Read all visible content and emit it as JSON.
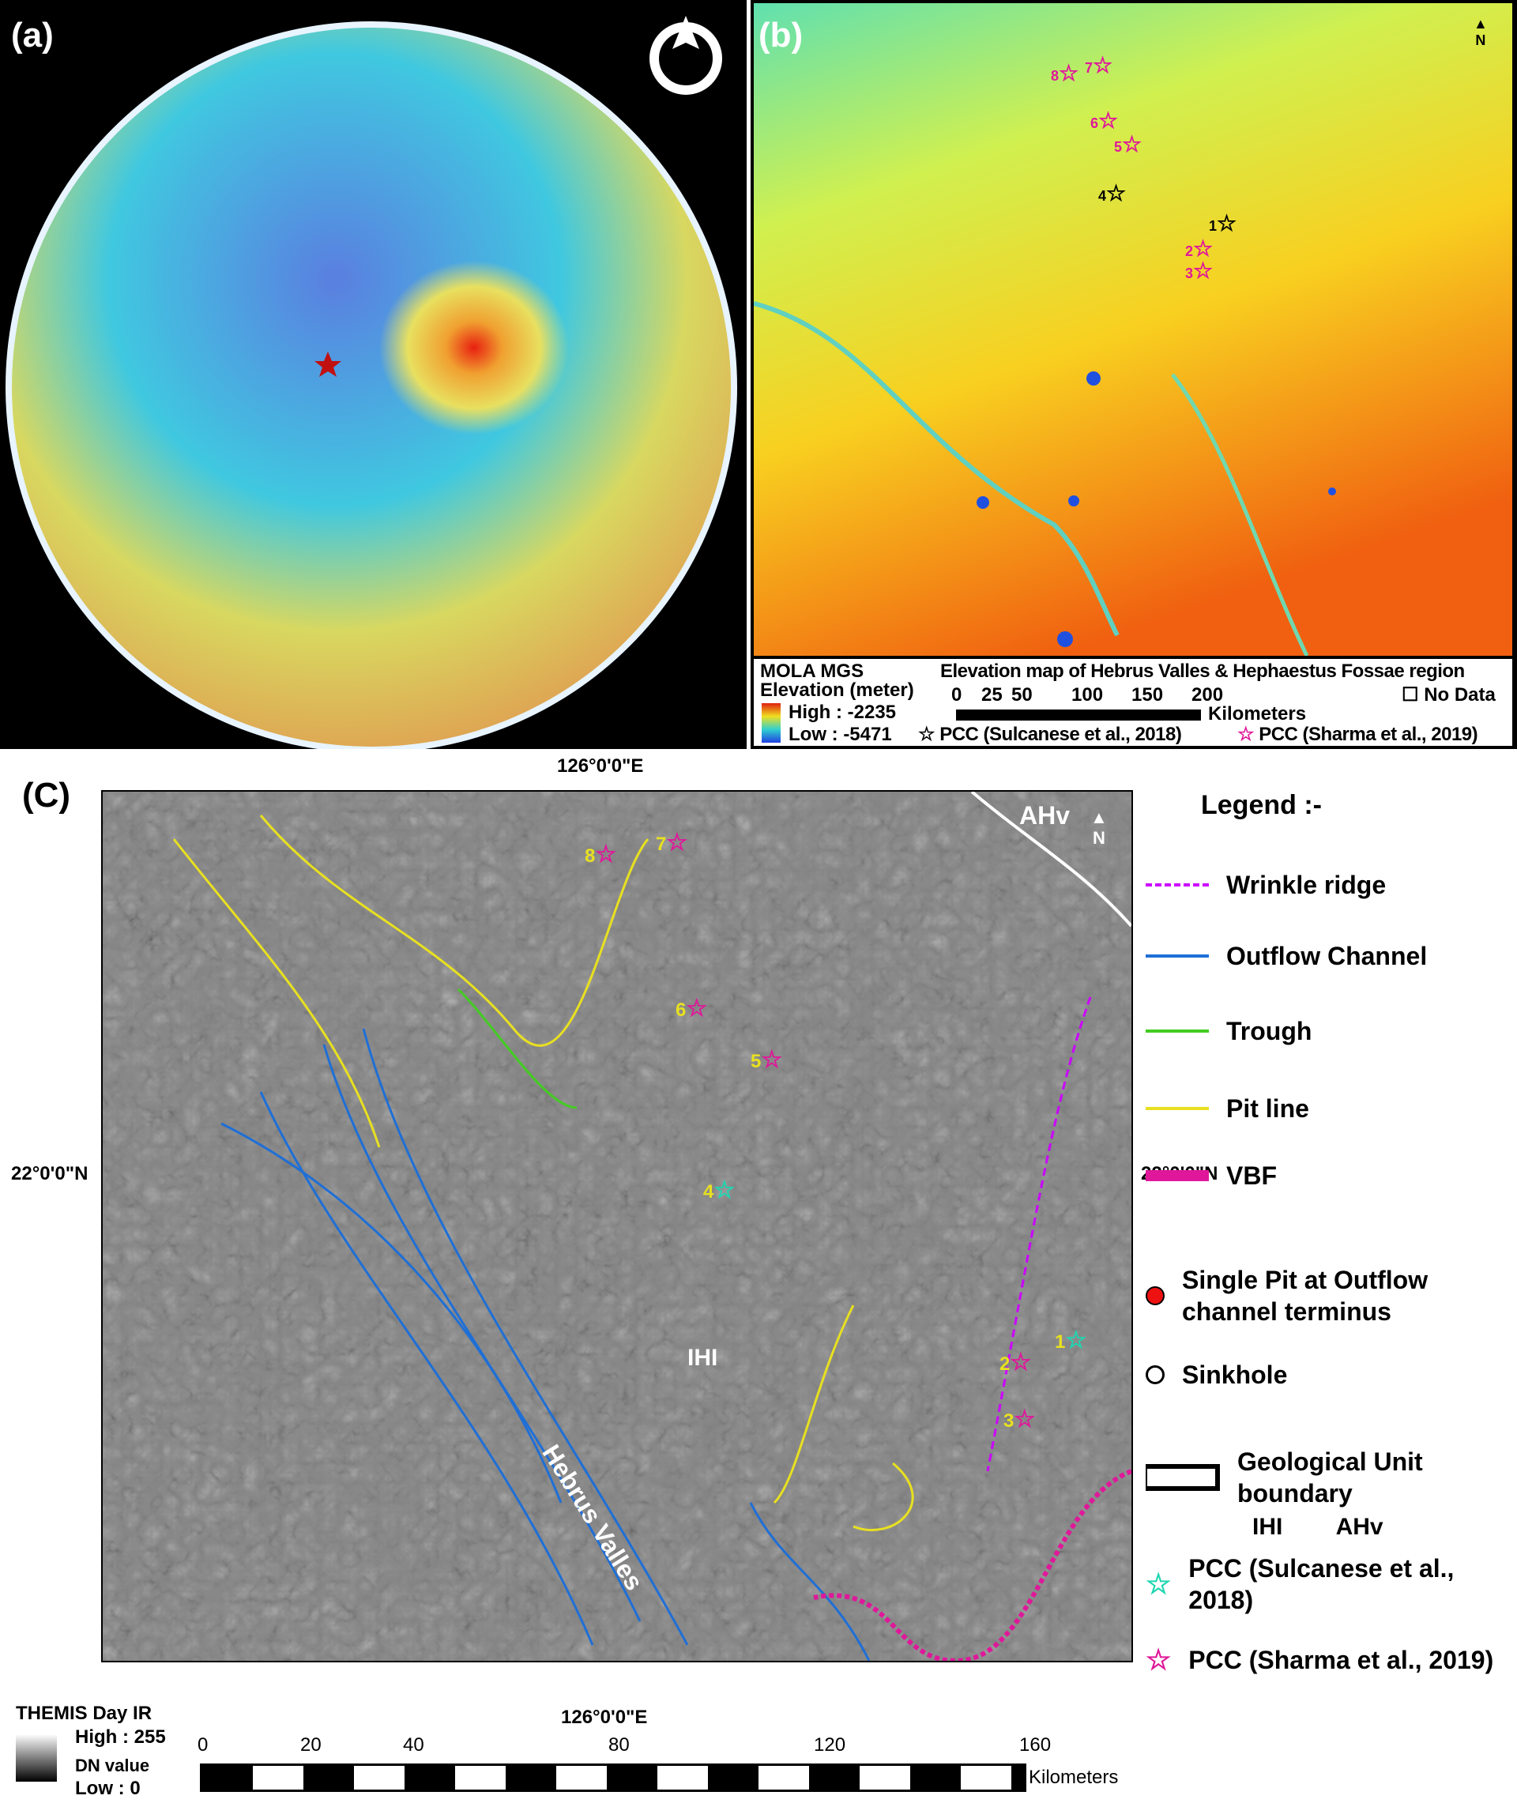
{
  "panel_a": {
    "label": "(a)",
    "icons": [
      "north-arrow-icon",
      "site-star-icon"
    ]
  },
  "panel_b": {
    "label": "(b)",
    "north": "N",
    "stars": [
      {
        "n": "1",
        "source": "Sulcanese"
      },
      {
        "n": "2",
        "source": "Sharma"
      },
      {
        "n": "3",
        "source": "Sharma"
      },
      {
        "n": "4",
        "source": "Sulcanese"
      },
      {
        "n": "5",
        "source": "Sharma"
      },
      {
        "n": "6",
        "source": "Sharma"
      },
      {
        "n": "7",
        "source": "Sharma"
      },
      {
        "n": "8",
        "source": "Sharma"
      }
    ],
    "legend": {
      "dataset": "MOLA MGS",
      "variable": "Elevation (meter)",
      "high": "High : -2235",
      "low": "Low : -5471",
      "title": "Elevation map of Hebrus Valles & Hephaestus Fossae region",
      "scale_ticks": [
        "0",
        "25",
        "50",
        "100",
        "150",
        "200"
      ],
      "scale_unit": "Kilometers",
      "no_data": "No Data",
      "pcc_sulcanese": "PCC (Sulcanese et al., 2018)",
      "pcc_sharma": "PCC (Sharma et al., 2019)"
    }
  },
  "panel_c": {
    "label": "(C)",
    "lon_top": "126°0'0\"E",
    "lon_bottom": "126°0'0\"E",
    "lat_left": "22°0'0\"N",
    "lat_right": "22°0'0\"N",
    "north": "N",
    "units": {
      "ahv": "AHv",
      "ihi": "IHI"
    },
    "valley": "Hebrus Valles",
    "stars": [
      "1",
      "2",
      "3",
      "4",
      "5",
      "6",
      "7",
      "8"
    ],
    "legend": {
      "title": "Legend :-",
      "items": [
        "Wrinkle ridge",
        "Outflow Channel",
        "Trough",
        "Pit line",
        "VBF",
        "Single Pit at Outflow channel terminus",
        "Sinkhole",
        "Geological Unit boundary",
        "PCC (Sulcanese et al., 2018)",
        "PCC (Sharma et al., 2019)"
      ],
      "unit_labels": [
        "IHI",
        "AHv"
      ]
    },
    "colorbar": {
      "title": "THEMIS Day IR",
      "high": "High : 255",
      "mid": "DN value",
      "low": "Low : 0"
    },
    "scale_ticks": [
      "0",
      "20",
      "40",
      "80",
      "120",
      "160"
    ],
    "scale_unit": "Kilometers"
  },
  "colors": {
    "wrinkle": "#cc00ff",
    "outflow": "#1f6fd6",
    "trough": "#44cc22",
    "pitline": "#e8e020",
    "vbf": "#e0179a",
    "pit": "#ee1111",
    "sulcanese": "#1fd6b0",
    "sharma": "#e0179a"
  }
}
